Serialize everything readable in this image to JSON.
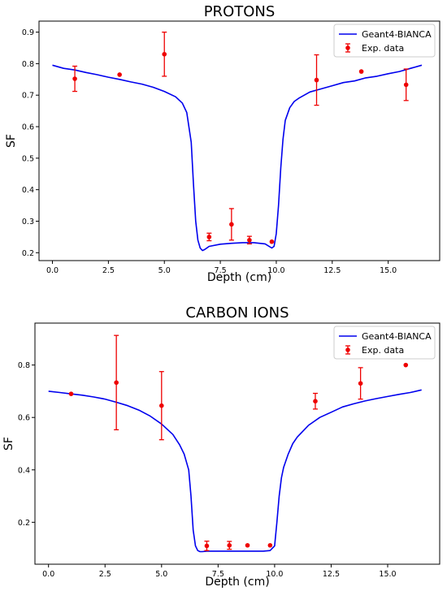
{
  "colors": {
    "simulation_line": "#0000ee",
    "experimental_points": "#ee0000",
    "axis": "#000000",
    "legend_border": "#cccccc"
  },
  "chart_data": [
    {
      "type": "line",
      "title": "PROTONS",
      "xlabel": "Depth (cm)",
      "ylabel": "SF",
      "xlim": [
        -0.6,
        17.3
      ],
      "ylim": [
        0.175,
        0.935
      ],
      "xticks": [
        0.0,
        2.5,
        5.0,
        7.5,
        10.0,
        12.5,
        15.0
      ],
      "xtick_labels": [
        "0.0",
        "2.5",
        "5.0",
        "7.5",
        "10.0",
        "12.5",
        "15.0"
      ],
      "yticks": [
        0.2,
        0.3,
        0.4,
        0.5,
        0.6,
        0.7,
        0.8,
        0.9
      ],
      "ytick_labels": [
        "0.2",
        "0.3",
        "0.4",
        "0.5",
        "0.6",
        "0.7",
        "0.8",
        "0.9"
      ],
      "legend_position": "top-right",
      "legend": [
        "Geant4-BIANCA",
        "Exp. data"
      ],
      "grid": false,
      "series": [
        {
          "name": "Geant4-BIANCA",
          "kind": "line",
          "x": [
            0.0,
            0.5,
            1.0,
            1.5,
            2.0,
            2.5,
            3.0,
            3.5,
            4.0,
            4.5,
            5.0,
            5.5,
            5.8,
            6.0,
            6.2,
            6.3,
            6.4,
            6.5,
            6.6,
            6.7,
            6.8,
            7.0,
            7.5,
            8.0,
            8.5,
            9.0,
            9.5,
            9.8,
            9.9,
            10.0,
            10.1,
            10.2,
            10.3,
            10.4,
            10.6,
            10.8,
            11.0,
            11.5,
            12.0,
            12.5,
            13.0,
            13.5,
            14.0,
            14.5,
            15.0,
            15.5,
            16.0,
            16.5
          ],
          "y": [
            0.795,
            0.785,
            0.78,
            0.772,
            0.765,
            0.757,
            0.75,
            0.742,
            0.735,
            0.725,
            0.712,
            0.695,
            0.675,
            0.645,
            0.55,
            0.42,
            0.3,
            0.24,
            0.215,
            0.207,
            0.21,
            0.22,
            0.227,
            0.23,
            0.232,
            0.232,
            0.228,
            0.215,
            0.22,
            0.26,
            0.35,
            0.47,
            0.56,
            0.62,
            0.66,
            0.68,
            0.69,
            0.71,
            0.72,
            0.73,
            0.74,
            0.745,
            0.755,
            0.76,
            0.768,
            0.775,
            0.785,
            0.795
          ]
        },
        {
          "name": "Exp. data",
          "kind": "errorbar",
          "x": [
            1.0,
            3.0,
            5.0,
            7.0,
            8.0,
            8.8,
            9.8,
            11.8,
            13.8,
            15.8
          ],
          "y": [
            0.752,
            0.765,
            0.83,
            0.25,
            0.29,
            0.24,
            0.235,
            0.748,
            0.775,
            0.733
          ],
          "yerr": [
            0.04,
            0.0,
            0.07,
            0.012,
            0.05,
            0.012,
            0.0,
            0.08,
            0.0,
            0.05
          ]
        }
      ]
    },
    {
      "type": "line",
      "title": "CARBON IONS",
      "xlabel": "Depth (cm)",
      "ylabel": "SF",
      "xlim": [
        -0.6,
        17.3
      ],
      "ylim": [
        0.04,
        0.96
      ],
      "xticks": [
        0.0,
        2.5,
        5.0,
        7.5,
        10.0,
        12.5,
        15.0
      ],
      "xtick_labels": [
        "0.0",
        "2.5",
        "5.0",
        "7.5",
        "10.0",
        "12.5",
        "15.0"
      ],
      "yticks": [
        0.2,
        0.4,
        0.6,
        0.8
      ],
      "ytick_labels": [
        "0.2",
        "0.4",
        "0.6",
        "0.8"
      ],
      "legend_position": "top-right",
      "legend": [
        "Geant4-BIANCA",
        "Exp. data"
      ],
      "grid": false,
      "series": [
        {
          "name": "Geant4-BIANCA",
          "kind": "line",
          "x": [
            0.0,
            0.5,
            1.0,
            1.5,
            2.0,
            2.5,
            3.0,
            3.5,
            4.0,
            4.5,
            5.0,
            5.5,
            5.8,
            6.0,
            6.2,
            6.3,
            6.4,
            6.5,
            6.6,
            6.7,
            6.8,
            7.0,
            7.5,
            8.0,
            8.5,
            9.0,
            9.5,
            9.8,
            10.0,
            10.1,
            10.2,
            10.3,
            10.4,
            10.6,
            10.8,
            11.0,
            11.5,
            12.0,
            12.5,
            13.0,
            13.5,
            14.0,
            14.5,
            15.0,
            15.5,
            16.0,
            16.5
          ],
          "y": [
            0.7,
            0.695,
            0.69,
            0.685,
            0.678,
            0.67,
            0.658,
            0.645,
            0.628,
            0.605,
            0.575,
            0.535,
            0.495,
            0.46,
            0.4,
            0.3,
            0.17,
            0.11,
            0.092,
            0.088,
            0.088,
            0.09,
            0.09,
            0.09,
            0.09,
            0.09,
            0.09,
            0.092,
            0.11,
            0.2,
            0.3,
            0.37,
            0.41,
            0.46,
            0.5,
            0.525,
            0.57,
            0.6,
            0.62,
            0.64,
            0.652,
            0.663,
            0.672,
            0.68,
            0.688,
            0.695,
            0.705
          ]
        },
        {
          "name": "Exp. data",
          "kind": "errorbar",
          "x": [
            1.0,
            3.0,
            5.0,
            7.0,
            8.0,
            8.8,
            9.8,
            11.8,
            13.8,
            15.8
          ],
          "y": [
            0.69,
            0.733,
            0.645,
            0.11,
            0.112,
            0.112,
            0.112,
            0.662,
            0.73,
            0.8
          ],
          "yerr": [
            0.0,
            0.18,
            0.13,
            0.018,
            0.015,
            0.0,
            0.0,
            0.03,
            0.06,
            0.0
          ]
        }
      ]
    }
  ]
}
